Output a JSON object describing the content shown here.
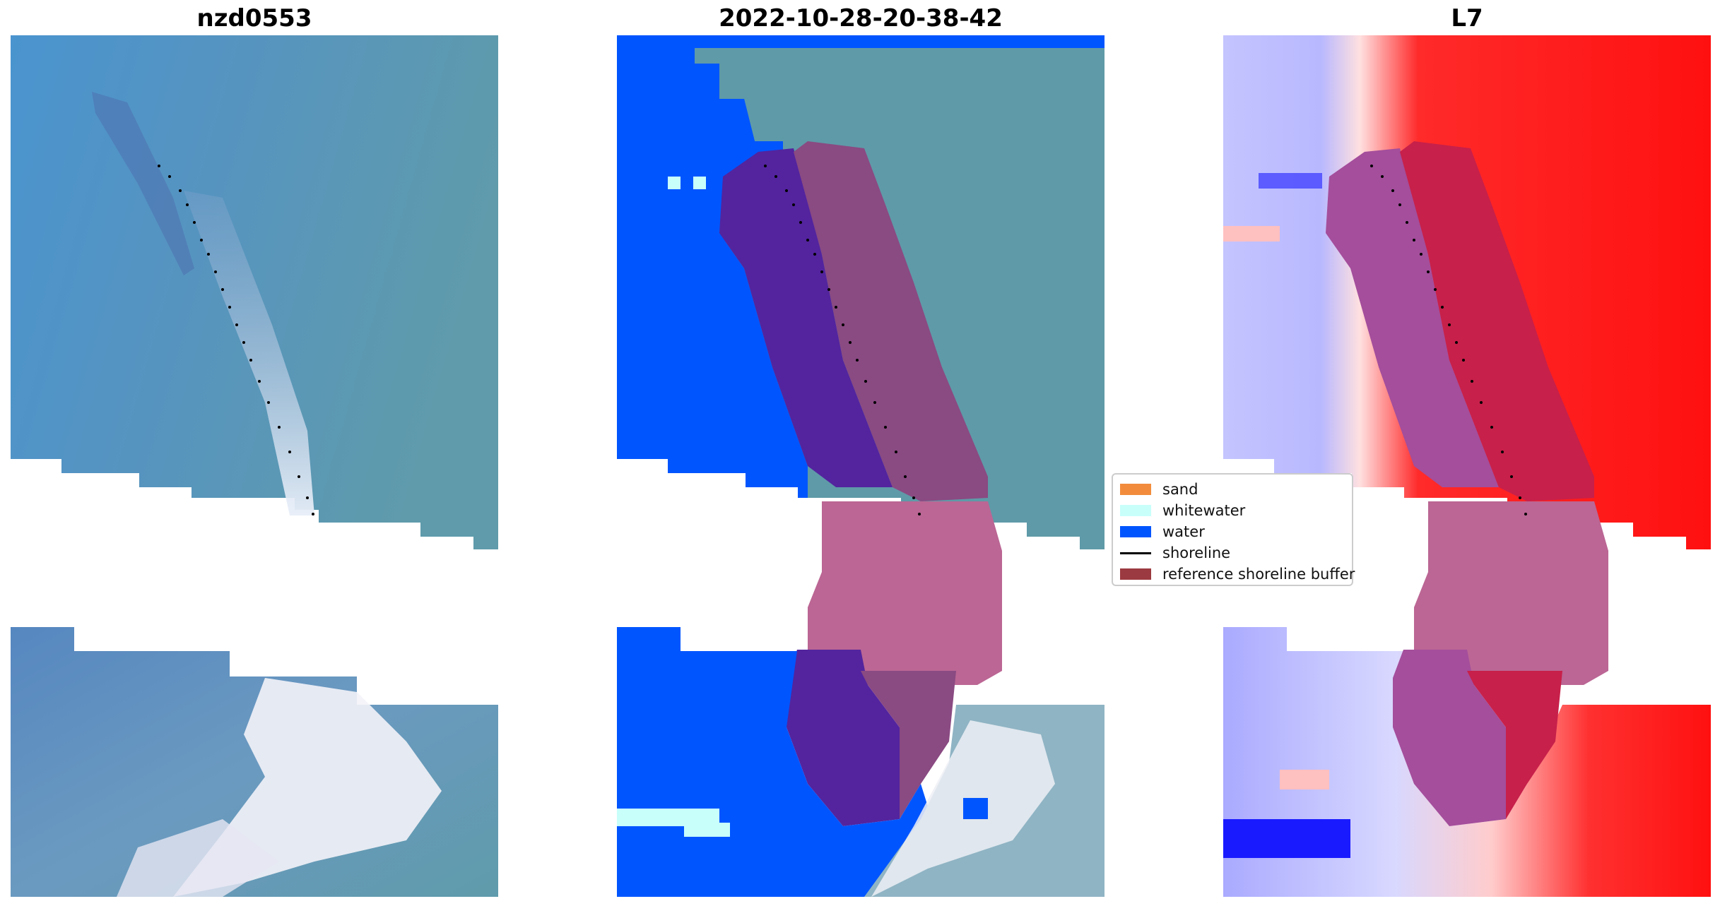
{
  "panels": [
    {
      "title": "nzd0553"
    },
    {
      "title": "2022-10-28-20-38-42"
    },
    {
      "title": "L7"
    }
  ],
  "legend": {
    "placement": "center",
    "items": [
      {
        "label": "sand",
        "color": "#f28c3c"
      },
      {
        "label": "whitewater",
        "color": "#c8fffb"
      },
      {
        "label": "water",
        "color": "#0055ff"
      },
      {
        "label": "shoreline",
        "color": "#000000"
      },
      {
        "label": "reference shoreline buffer",
        "color": "#9b3a40"
      }
    ]
  },
  "colors": {
    "rgb_water": "#4d8fc4",
    "rgb_land": "#5f9aa8",
    "classified_water": "#0055ff",
    "buffer_over_water": "#53249e",
    "buffer_over_land": "#8a4a82",
    "buffer_over_nodata": "#bb6694",
    "index_negative": "#b8b8ff",
    "index_positive": "#ff1a1a",
    "index_buffer_red": "#c7204a"
  }
}
